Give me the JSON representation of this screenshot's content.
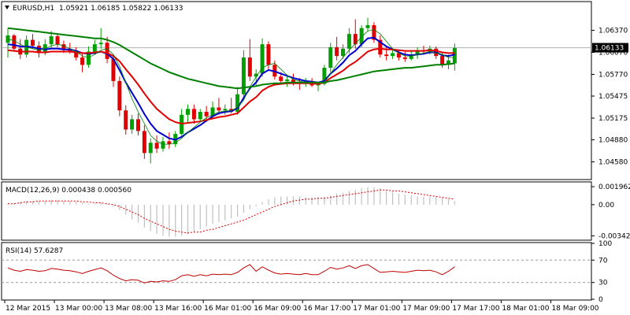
{
  "header": {
    "symbol_label": "EURUSD,H1",
    "ohlc": "1.05921 1.06185 1.05822 1.06133",
    "dropdown_icon": "triangle-down-icon"
  },
  "chart_data": [
    {
      "id": "price",
      "type": "candlestick",
      "title": "EURUSD,H1 1.05921 1.06185 1.05822 1.06133",
      "ylim": [
        1.0435,
        1.0675
      ],
      "yticks": [
        "1.06370",
        "1.06070",
        "1.05770",
        "1.05475",
        "1.05175",
        "1.04880",
        "1.04580"
      ],
      "ytick_values": [
        1.0637,
        1.0607,
        1.0577,
        1.05475,
        1.05175,
        1.0488,
        1.0458
      ],
      "current_price": "1.06133",
      "current_price_value": 1.06133,
      "colors": {
        "up": "#00a000",
        "down": "#e00000",
        "ma_fast": "#0000d0",
        "ma_mid": "#e00000",
        "ma_slow": "#008000",
        "ma_thin": "#008000"
      },
      "candles": [
        [
          1.062,
          1.064,
          1.06,
          1.063
        ],
        [
          1.063,
          1.0632,
          1.0608,
          1.0612
        ],
        [
          1.0612,
          1.0625,
          1.0598,
          1.0604
        ],
        [
          1.0604,
          1.063,
          1.06,
          1.0624
        ],
        [
          1.0624,
          1.0632,
          1.0612,
          1.0616
        ],
        [
          1.0616,
          1.0622,
          1.06,
          1.0606
        ],
        [
          1.0606,
          1.0625,
          1.0603,
          1.0618
        ],
        [
          1.0618,
          1.0636,
          1.0612,
          1.0629
        ],
        [
          1.0629,
          1.0632,
          1.0614,
          1.0618
        ],
        [
          1.0618,
          1.0623,
          1.0606,
          1.0612
        ],
        [
          1.0612,
          1.062,
          1.0605,
          1.0608
        ],
        [
          1.0608,
          1.0614,
          1.0596,
          1.06
        ],
        [
          1.06,
          1.0606,
          1.058,
          1.059
        ],
        [
          1.059,
          1.0615,
          1.0586,
          1.0608
        ],
        [
          1.0608,
          1.0624,
          1.0604,
          1.0618
        ],
        [
          1.0618,
          1.064,
          1.0612,
          1.062
        ],
        [
          1.062,
          1.0628,
          1.0592,
          1.0598
        ],
        [
          1.0598,
          1.0604,
          1.056,
          1.0568
        ],
        [
          1.0568,
          1.0574,
          1.052,
          1.0528
        ],
        [
          1.0528,
          1.0535,
          1.0495,
          1.0502
        ],
        [
          1.0502,
          1.0522,
          1.0496,
          1.0516
        ],
        [
          1.0516,
          1.0524,
          1.0494,
          1.05
        ],
        [
          1.05,
          1.0508,
          1.0462,
          1.047
        ],
        [
          1.047,
          1.049,
          1.0456,
          1.0484
        ],
        [
          1.0484,
          1.0494,
          1.047,
          1.0476
        ],
        [
          1.0476,
          1.0492,
          1.0472,
          1.0486
        ],
        [
          1.0486,
          1.0498,
          1.0476,
          1.0482
        ],
        [
          1.0482,
          1.05,
          1.0478,
          1.0496
        ],
        [
          1.0496,
          1.053,
          1.0494,
          1.0522
        ],
        [
          1.0522,
          1.0536,
          1.0512,
          1.053
        ],
        [
          1.053,
          1.0536,
          1.051,
          1.0516
        ],
        [
          1.0516,
          1.053,
          1.0512,
          1.0526
        ],
        [
          1.0526,
          1.0534,
          1.0514,
          1.052
        ],
        [
          1.052,
          1.054,
          1.0518,
          1.0532
        ],
        [
          1.0532,
          1.0545,
          1.0522,
          1.0528
        ],
        [
          1.0528,
          1.0536,
          1.0522,
          1.053
        ],
        [
          1.053,
          1.0545,
          1.0524,
          1.0526
        ],
        [
          1.0526,
          1.056,
          1.0522,
          1.055
        ],
        [
          1.055,
          1.061,
          1.0545,
          1.06
        ],
        [
          1.06,
          1.0625,
          1.0568,
          1.0574
        ],
        [
          1.0574,
          1.0584,
          1.0562,
          1.0578
        ],
        [
          1.0578,
          1.0626,
          1.0574,
          1.0618
        ],
        [
          1.0618,
          1.0622,
          1.0584,
          1.059
        ],
        [
          1.059,
          1.0596,
          1.057,
          1.0574
        ],
        [
          1.0574,
          1.058,
          1.0564,
          1.0568
        ],
        [
          1.0568,
          1.0574,
          1.056,
          1.057
        ],
        [
          1.057,
          1.0578,
          1.0562,
          1.0566
        ],
        [
          1.0566,
          1.0572,
          1.0556,
          1.0564
        ],
        [
          1.0564,
          1.0572,
          1.056,
          1.0568
        ],
        [
          1.0568,
          1.0572,
          1.056,
          1.0562
        ],
        [
          1.0562,
          1.0566,
          1.0554,
          1.0564
        ],
        [
          1.0564,
          1.059,
          1.0562,
          1.0586
        ],
        [
          1.0586,
          1.062,
          1.058,
          1.0614
        ],
        [
          1.0614,
          1.0628,
          1.0596,
          1.0602
        ],
        [
          1.0602,
          1.0618,
          1.0598,
          1.0612
        ],
        [
          1.0612,
          1.064,
          1.0606,
          1.0632
        ],
        [
          1.0632,
          1.0652,
          1.0612,
          1.0618
        ],
        [
          1.0618,
          1.0644,
          1.0614,
          1.064
        ],
        [
          1.064,
          1.0654,
          1.0636,
          1.0644
        ],
        [
          1.0644,
          1.0648,
          1.062,
          1.0624
        ],
        [
          1.0624,
          1.063,
          1.06,
          1.0604
        ],
        [
          1.0604,
          1.0614,
          1.0596,
          1.0602
        ],
        [
          1.0602,
          1.0612,
          1.0598,
          1.0606
        ],
        [
          1.0606,
          1.061,
          1.0596,
          1.06
        ],
        [
          1.06,
          1.0608,
          1.0594,
          1.0598
        ],
        [
          1.0598,
          1.061,
          1.0596,
          1.0604
        ],
        [
          1.0604,
          1.0614,
          1.0598,
          1.061
        ],
        [
          1.061,
          1.0616,
          1.0604,
          1.0608
        ],
        [
          1.0608,
          1.0616,
          1.0604,
          1.0612
        ],
        [
          1.0612,
          1.0615,
          1.0598,
          1.0602
        ],
        [
          1.0602,
          1.0608,
          1.0586,
          1.059
        ],
        [
          1.059,
          1.0604,
          1.0584,
          1.0596
        ],
        [
          1.0592,
          1.0619,
          1.0582,
          1.0613
        ]
      ],
      "series": [
        {
          "key": "ma_fast",
          "values": [
            1.0618,
            1.0617,
            1.0615,
            1.0615,
            1.0614,
            1.0612,
            1.0611,
            1.0612,
            1.0612,
            1.0611,
            1.0611,
            1.0609,
            1.0606,
            1.0605,
            1.0606,
            1.0608,
            1.0605,
            1.0598,
            1.0583,
            1.0566,
            1.0552,
            1.0538,
            1.0523,
            1.051,
            1.05,
            1.0495,
            1.049,
            1.0488,
            1.0492,
            1.0498,
            1.0503,
            1.0508,
            1.0514,
            1.052,
            1.0524,
            1.0526,
            1.0527,
            1.0531,
            1.0545,
            1.0558,
            1.0566,
            1.0578,
            1.0583,
            1.0581,
            1.0578,
            1.0575,
            1.0572,
            1.057,
            1.0568,
            1.0567,
            1.0566,
            1.0568,
            1.0578,
            1.0585,
            1.0593,
            1.0603,
            1.0609,
            1.0618,
            1.0626,
            1.0627,
            1.0621,
            1.0615,
            1.0611,
            1.0607,
            1.0604,
            1.0603,
            1.0604,
            1.0605,
            1.0607,
            1.0607,
            1.0603,
            1.0602,
            1.0604
          ]
        },
        {
          "key": "ma_mid",
          "values": [
            1.061,
            1.0609,
            1.0608,
            1.0608,
            1.0608,
            1.0607,
            1.0607,
            1.0608,
            1.0608,
            1.0608,
            1.0608,
            1.0607,
            1.0606,
            1.0606,
            1.0607,
            1.0608,
            1.0606,
            1.0602,
            1.0595,
            1.0584,
            1.0574,
            1.0563,
            1.0551,
            1.054,
            1.053,
            1.0523,
            1.0516,
            1.0512,
            1.051,
            1.0511,
            1.0512,
            1.0513,
            1.0515,
            1.0517,
            1.0519,
            1.052,
            1.0522,
            1.0524,
            1.0532,
            1.054,
            1.0546,
            1.0555,
            1.056,
            1.0563,
            1.0564,
            1.0565,
            1.0565,
            1.0565,
            1.0565,
            1.0565,
            1.0564,
            1.0566,
            1.0572,
            1.0577,
            1.0582,
            1.0589,
            1.0594,
            1.0601,
            1.0608,
            1.0611,
            1.0612,
            1.0611,
            1.0611,
            1.061,
            1.0609,
            1.0609,
            1.0609,
            1.0609,
            1.061,
            1.0609,
            1.0607,
            1.0606,
            1.0606
          ]
        },
        {
          "key": "ma_slow",
          "values": [
            1.064,
            1.0639,
            1.0638,
            1.0637,
            1.0636,
            1.0635,
            1.0634,
            1.0633,
            1.0632,
            1.0631,
            1.063,
            1.0629,
            1.0628,
            1.0627,
            1.0626,
            1.0626,
            1.0624,
            1.0621,
            1.0617,
            1.0612,
            1.0607,
            1.0602,
            1.0597,
            1.0592,
            1.0588,
            1.0584,
            1.058,
            1.0577,
            1.0574,
            1.0571,
            1.0569,
            1.0567,
            1.0565,
            1.0563,
            1.0561,
            1.056,
            1.0559,
            1.0558,
            1.0559,
            1.056,
            1.0561,
            1.0563,
            1.0564,
            1.0565,
            1.0565,
            1.0566,
            1.0566,
            1.0566,
            1.0566,
            1.0566,
            1.0566,
            1.0566,
            1.0568,
            1.0569,
            1.0571,
            1.0573,
            1.0575,
            1.0577,
            1.0579,
            1.0581,
            1.0582,
            1.0583,
            1.0584,
            1.0585,
            1.0586,
            1.0586,
            1.0587,
            1.0588,
            1.0589,
            1.059,
            1.059,
            1.0591,
            1.0592
          ]
        },
        {
          "key": "ma_thin",
          "values": [
            1.0625,
            1.0623,
            1.0618,
            1.0614,
            1.0612,
            1.061,
            1.0612,
            1.0616,
            1.0618,
            1.0616,
            1.0612,
            1.0608,
            1.0602,
            1.06,
            1.0604,
            1.061,
            1.0612,
            1.0604,
            1.0588,
            1.0566,
            1.0544,
            1.0526,
            1.051,
            1.0494,
            1.0486,
            1.0482,
            1.0482,
            1.0484,
            1.049,
            1.0498,
            1.0505,
            1.0512,
            1.0518,
            1.0522,
            1.0526,
            1.0527,
            1.0528,
            1.0532,
            1.0542,
            1.056,
            1.0574,
            1.0586,
            1.059,
            1.0592,
            1.0584,
            1.0576,
            1.057,
            1.0568,
            1.0566,
            1.0566,
            1.0565,
            1.0566,
            1.0578,
            1.059,
            1.06,
            1.061,
            1.0619,
            1.0628,
            1.0636,
            1.0638,
            1.0632,
            1.0622,
            1.0612,
            1.0606,
            1.0602,
            1.0602,
            1.0604,
            1.0606,
            1.0608,
            1.0606,
            1.0604,
            1.06,
            1.06
          ]
        }
      ]
    },
    {
      "id": "macd",
      "type": "histogram+line",
      "title": "MACD(12,26,9) 0.000438 0.000560",
      "ylim": [
        -0.0038,
        0.0024
      ],
      "yticks": [
        "0.001962",
        "0.00",
        "-0.003421"
      ],
      "ytick_values": [
        0.001962,
        0.0,
        -0.003421
      ],
      "colors": {
        "histogram": "#c0c0c0",
        "signal": "#e00000"
      },
      "histogram": [
        0.0001,
        0.0002,
        0.0003,
        0.0004,
        0.0004,
        0.0004,
        0.0004,
        0.0005,
        0.0005,
        0.0004,
        0.0004,
        0.0003,
        0.0002,
        0.0001,
        0.0001,
        0.0002,
        0.0001,
        -0.0002,
        -0.0006,
        -0.0011,
        -0.0016,
        -0.002,
        -0.0025,
        -0.0029,
        -0.0032,
        -0.0034,
        -0.0035,
        -0.0035,
        -0.0034,
        -0.0032,
        -0.003,
        -0.0027,
        -0.0024,
        -0.0021,
        -0.0019,
        -0.0017,
        -0.0015,
        -0.0013,
        -0.0009,
        -0.0005,
        -0.0002,
        0.0003,
        0.0006,
        0.0008,
        0.0009,
        0.0009,
        0.0009,
        0.0009,
        0.0008,
        0.0008,
        0.0008,
        0.0008,
        0.001,
        0.0012,
        0.0013,
        0.0015,
        0.0016,
        0.0018,
        0.0019,
        0.0019,
        0.0018,
        0.0016,
        0.0014,
        0.0012,
        0.0011,
        0.001,
        0.0009,
        0.0009,
        0.0009,
        0.0009,
        0.0008,
        0.0006,
        0.0004
      ],
      "signal": [
        0.0001,
        0.0001,
        0.0002,
        0.0003,
        0.0003,
        0.0004,
        0.0004,
        0.0004,
        0.0004,
        0.0004,
        0.0004,
        0.0004,
        0.0003,
        0.0003,
        0.0002,
        0.0002,
        0.0001,
        0.0,
        -0.0002,
        -0.0005,
        -0.0008,
        -0.0011,
        -0.0015,
        -0.0018,
        -0.0021,
        -0.0024,
        -0.0027,
        -0.0029,
        -0.003,
        -0.0031,
        -0.003,
        -0.003,
        -0.0028,
        -0.0027,
        -0.0025,
        -0.0023,
        -0.0021,
        -0.0019,
        -0.0017,
        -0.0014,
        -0.0011,
        -0.0008,
        -0.0005,
        -0.0002,
        0.0,
        0.0002,
        0.0004,
        0.0005,
        0.0006,
        0.0006,
        0.0007,
        0.0007,
        0.0008,
        0.0009,
        0.001,
        0.0011,
        0.0012,
        0.0013,
        0.0014,
        0.0015,
        0.0016,
        0.0016,
        0.0015,
        0.0015,
        0.0014,
        0.0013,
        0.0012,
        0.0011,
        0.001,
        0.0009,
        0.0008,
        0.0007,
        0.0006
      ]
    },
    {
      "id": "rsi",
      "type": "line",
      "title": "RSI(14) 57.6287",
      "ylim": [
        0,
        100
      ],
      "yticks": [
        "100",
        "70",
        "30",
        "0"
      ],
      "ytick_values": [
        100,
        70,
        30,
        0
      ],
      "levels": [
        70,
        30
      ],
      "colors": {
        "line": "#c00000",
        "levels": "#999999"
      },
      "values": [
        56,
        52,
        50,
        53,
        52,
        50,
        51,
        55,
        54,
        52,
        51,
        49,
        46,
        50,
        53,
        56,
        51,
        43,
        37,
        33,
        35,
        34,
        29,
        32,
        31,
        33,
        32,
        35,
        42,
        44,
        41,
        44,
        42,
        45,
        44,
        45,
        44,
        48,
        56,
        62,
        50,
        58,
        52,
        47,
        45,
        46,
        45,
        44,
        46,
        44,
        44,
        50,
        57,
        54,
        56,
        60,
        55,
        60,
        62,
        55,
        48,
        49,
        50,
        49,
        48,
        50,
        52,
        51,
        52,
        49,
        44,
        50,
        58
      ]
    }
  ],
  "x_axis": {
    "labels": [
      "12 Mar 2015",
      "13 Mar 00:00",
      "13 Mar 08:00",
      "13 Mar 16:00",
      "16 Mar 01:00",
      "16 Mar 09:00",
      "16 Mar 17:00",
      "17 Mar 01:00",
      "17 Mar 09:00",
      "17 Mar 17:00",
      "18 Mar 01:00",
      "18 Mar 09:00"
    ],
    "label_positions": [
      0,
      8,
      16,
      24,
      32,
      40,
      48,
      56,
      64,
      72,
      80,
      88
    ]
  }
}
